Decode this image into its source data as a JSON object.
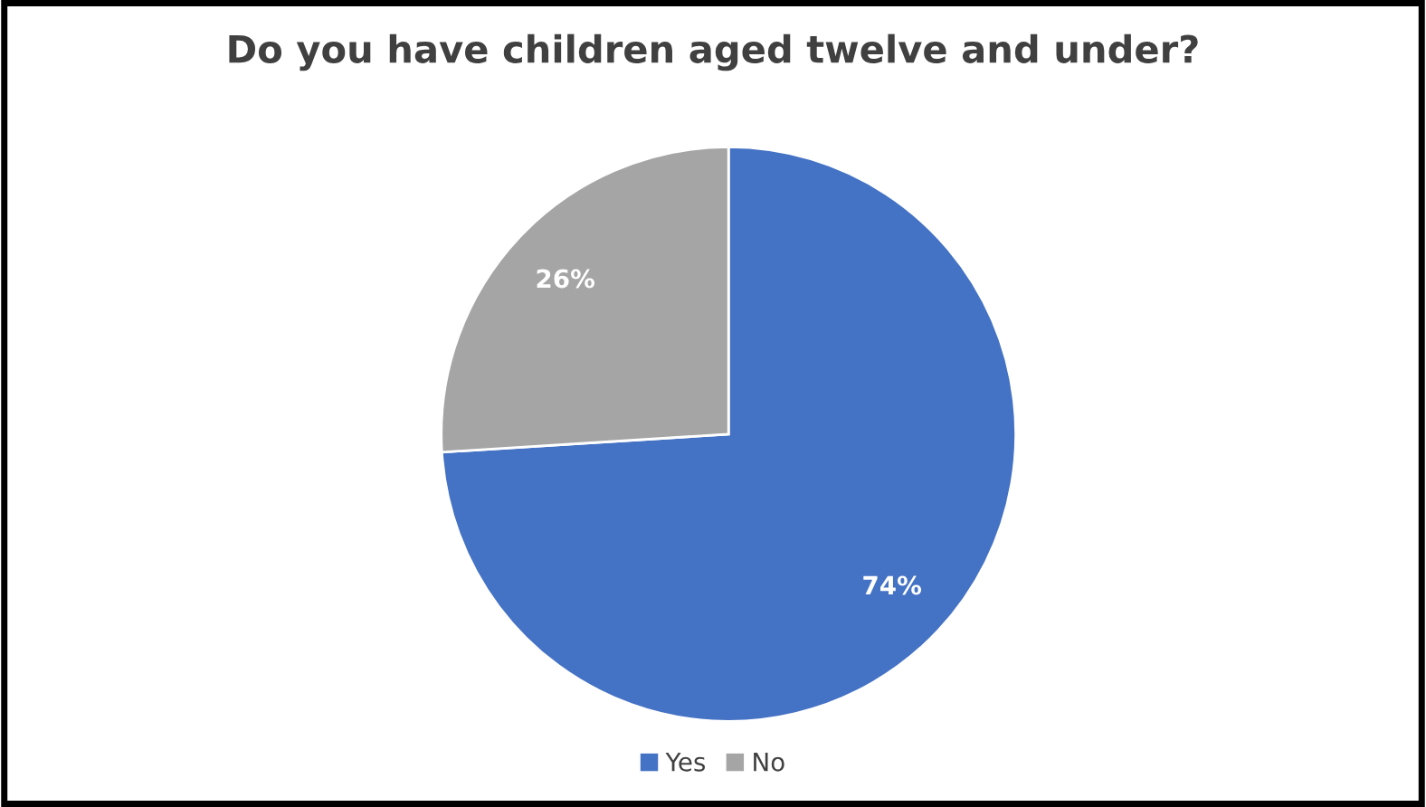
{
  "chart_data": {
    "type": "pie",
    "title": "Do you have children aged twelve and under?",
    "categories": [
      "Yes",
      "No"
    ],
    "values": [
      74,
      26
    ],
    "colors": [
      "#4472c4",
      "#a5a5a5"
    ],
    "value_labels": [
      "74%",
      "26%"
    ],
    "legend": "bottom"
  }
}
